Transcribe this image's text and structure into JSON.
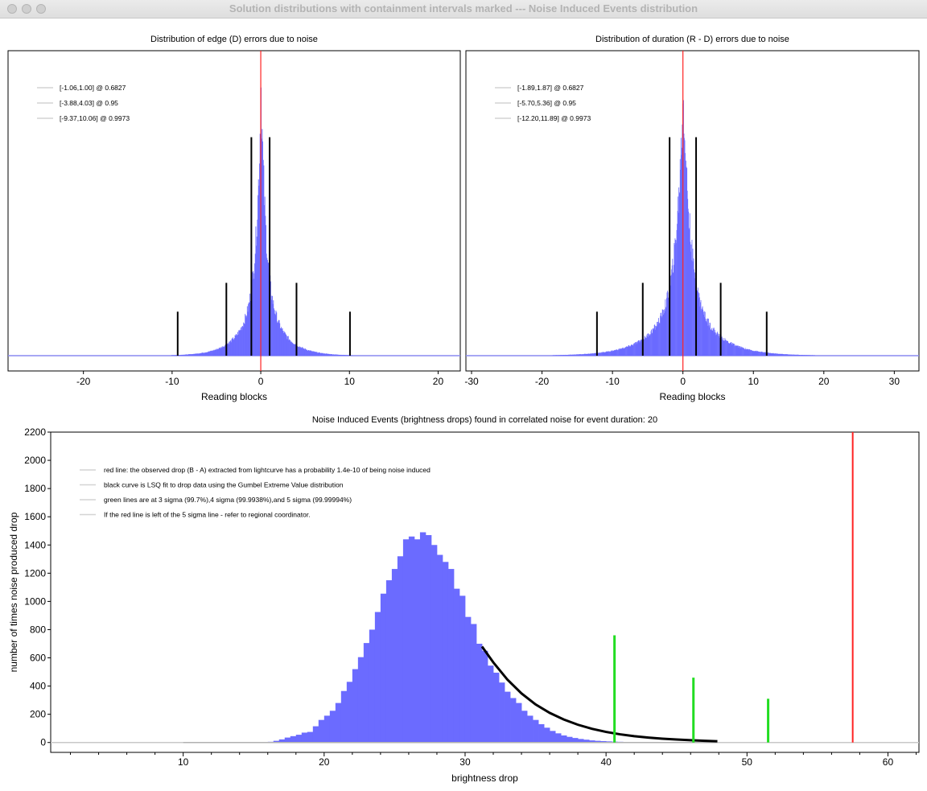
{
  "window": {
    "title": "Solution distributions with containment intervals marked --- Noise Induced Events distribution"
  },
  "chart_data": [
    {
      "type": "bar",
      "title": "Distribution of edge (D) errors due to noise",
      "xlabel": "Reading blocks",
      "ylabel": "",
      "xlim": [
        -28.5,
        22.5
      ],
      "x_ticks": [
        "-20",
        "-10",
        "0",
        "10",
        "20"
      ],
      "x_tick_values": [
        -20,
        -10,
        0,
        10,
        20
      ],
      "grid": false,
      "legend_position": "top-left",
      "legend": [
        "[-1.06,1.00] @ 0.6827",
        "[-3.88,4.03] @ 0.95",
        "[-9.37,10.06] @ 0.9973"
      ],
      "distribution": {
        "shape": "laplace-like",
        "center": 0,
        "scale": 1.1,
        "peak": 0.885
      },
      "red_line_x": 0,
      "intervals": [
        {
          "lo": -1.06,
          "hi": 1.0,
          "level": 0.6827
        },
        {
          "lo": -3.88,
          "hi": 4.03,
          "level": 0.95
        },
        {
          "lo": -9.37,
          "hi": 10.06,
          "level": 0.9973
        }
      ],
      "colors": {
        "bars": "#6b6bff",
        "center_line": "#ff2222",
        "interval_lines": "#000000"
      }
    },
    {
      "type": "bar",
      "title": "Distribution of duration (R - D) errors due to noise",
      "xlabel": "Reading blocks",
      "ylabel": "",
      "xlim": [
        -30.8,
        33.5
      ],
      "x_ticks": [
        "-30",
        "-20",
        "-10",
        "0",
        "10",
        "20",
        "30"
      ],
      "x_tick_values": [
        -30,
        -20,
        -10,
        0,
        10,
        20,
        30
      ],
      "grid": false,
      "legend_position": "top-left",
      "legend": [
        "[-1.89,1.87] @ 0.6827",
        "[-5.70,5.36] @ 0.95",
        "[-12.20,11.89] @ 0.9973"
      ],
      "distribution": {
        "shape": "laplace-like",
        "center": 0,
        "scale": 2.0,
        "peak": 0.88
      },
      "red_line_x": 0,
      "intervals": [
        {
          "lo": -1.89,
          "hi": 1.87,
          "level": 0.6827
        },
        {
          "lo": -5.7,
          "hi": 5.36,
          "level": 0.95
        },
        {
          "lo": -12.2,
          "hi": 11.89,
          "level": 0.9973
        }
      ],
      "colors": {
        "bars": "#6b6bff",
        "center_line": "#ff2222",
        "interval_lines": "#000000"
      }
    },
    {
      "type": "bar",
      "title": "Noise Induced Events (brightness drops) found in correlated noise for event duration: 20",
      "xlabel": "brightness drop",
      "ylabel": "number of times noise produced drop",
      "xlim": [
        0.6,
        62.2
      ],
      "ylim": [
        -70,
        2200
      ],
      "x_ticks": [
        "10",
        "20",
        "30",
        "40",
        "50",
        "60"
      ],
      "x_tick_values": [
        10,
        20,
        30,
        40,
        50,
        60
      ],
      "y_ticks": [
        "0",
        "200",
        "400",
        "600",
        "800",
        "1000",
        "1200",
        "1400",
        "1600",
        "1800",
        "2000",
        "2200"
      ],
      "y_tick_values": [
        0,
        200,
        400,
        600,
        800,
        1000,
        1200,
        1400,
        1600,
        1800,
        2000,
        2200
      ],
      "grid": false,
      "legend_position": "top-left",
      "legend": [
        "red line: the observed drop (B - A) extracted from lightcurve has a probability 1.4e-10 of being noise induced",
        "black curve is LSQ fit to drop data using the Gumbel Extreme Value distribution",
        "green lines are at 3 sigma (99.7%),4 sigma (99.9938%),and 5 sigma (99.99994%)",
        "If the red line is left of the 5 sigma line - refer to regional coordinator."
      ],
      "histogram": {
        "bin_width": 0.4,
        "x": [
          16.0,
          16.4,
          16.8,
          17.2,
          17.6,
          18.0,
          18.4,
          18.8,
          19.2,
          19.6,
          20.0,
          20.4,
          20.8,
          21.2,
          21.6,
          22.0,
          22.4,
          22.8,
          23.2,
          23.6,
          24.0,
          24.4,
          24.8,
          25.2,
          25.6,
          26.0,
          26.4,
          26.8,
          27.2,
          27.6,
          28.0,
          28.4,
          28.8,
          29.2,
          29.6,
          30.0,
          30.4,
          30.8,
          31.2,
          31.6,
          32.0,
          32.4,
          32.8,
          33.2,
          33.6,
          34.0,
          34.4,
          34.8,
          35.2,
          35.6,
          36.0,
          36.4,
          36.8,
          37.2,
          37.6,
          38.0,
          38.4,
          38.8,
          39.2,
          39.6,
          40.0,
          40.4,
          40.8,
          41.2,
          41.6,
          42.0,
          42.4,
          42.8,
          43.2,
          43.6,
          44.0,
          44.4,
          44.8,
          45.2,
          45.6,
          46.0,
          46.4,
          46.8,
          47.2,
          47.6
        ],
        "values": [
          5,
          12,
          22,
          35,
          45,
          55,
          70,
          75,
          115,
          160,
          190,
          225,
          280,
          365,
          430,
          520,
          605,
          705,
          800,
          925,
          1055,
          1150,
          1230,
          1320,
          1440,
          1460,
          1440,
          1490,
          1470,
          1400,
          1330,
          1280,
          1230,
          1090,
          1040,
          890,
          840,
          700,
          650,
          545,
          495,
          425,
          360,
          315,
          280,
          225,
          190,
          160,
          130,
          105,
          82,
          65,
          50,
          40,
          32,
          25,
          20,
          15,
          12,
          10,
          8,
          6,
          5,
          4,
          3,
          3,
          2,
          2,
          1,
          1,
          1,
          1,
          1,
          0,
          0,
          0,
          0,
          0,
          0,
          0
        ]
      },
      "fit_curve": {
        "label": "Gumbel Extreme Value fit",
        "x": [
          31.2,
          32.0,
          33.0,
          34.0,
          35.0,
          36.0,
          37.0,
          38.0,
          39.0,
          40.0,
          41.0,
          42.0,
          43.0,
          44.0,
          45.0,
          46.0,
          47.0,
          47.9
        ],
        "y": [
          680,
          568,
          446,
          348,
          270,
          210,
          163,
          126,
          97,
          75,
          58,
          45,
          35,
          27,
          21,
          16,
          12,
          9
        ]
      },
      "baseline_line": {
        "x": [
          10,
          47.9
        ],
        "y": [
          0,
          0
        ]
      },
      "sigma_lines": [
        {
          "label": "3 sigma",
          "x": 40.6,
          "height": 760
        },
        {
          "label": "4 sigma",
          "x": 46.2,
          "height": 460
        },
        {
          "label": "5 sigma",
          "x": 51.5,
          "height": 310
        }
      ],
      "observed_drop": {
        "x": 57.5,
        "probability": "1.4e-10"
      },
      "colors": {
        "bars": "#6b6bff",
        "fit": "#000000",
        "sigma": "#22dd22",
        "observed": "#ff2222"
      }
    }
  ]
}
